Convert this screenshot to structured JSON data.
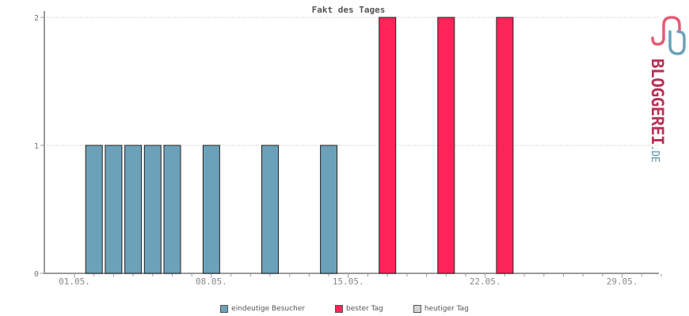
{
  "chart_data": {
    "type": "bar",
    "title": "Fakt des Tages",
    "xlabel": "",
    "ylabel": "",
    "ylim": [
      0,
      2
    ],
    "yticks": [
      "0",
      "1",
      "2"
    ],
    "x_tick_labels": [
      "01.05.",
      "08.05.",
      "15.05.",
      "22.05.",
      "29.05."
    ],
    "grid": true,
    "legend_position": "bottom",
    "categories": [
      "01.05.",
      "02.05.",
      "03.05.",
      "04.05.",
      "05.05.",
      "06.05.",
      "07.05.",
      "08.05.",
      "09.05.",
      "10.05.",
      "11.05.",
      "12.05.",
      "13.05.",
      "14.05.",
      "15.05.",
      "16.05.",
      "17.05.",
      "18.05.",
      "19.05.",
      "20.05.",
      "21.05.",
      "22.05.",
      "23.05.",
      "24.05.",
      "25.05.",
      "26.05.",
      "27.05.",
      "28.05.",
      "29.05.",
      "30.05.",
      "31.05."
    ],
    "series": [
      {
        "name": "eindeutige Besucher",
        "color": "#6ca2b9",
        "values": [
          0,
          1,
          1,
          1,
          1,
          1,
          0,
          1,
          0,
          0,
          1,
          0,
          0,
          1,
          0,
          0,
          0,
          0,
          0,
          0,
          0,
          0,
          0,
          0,
          0,
          0,
          0,
          0,
          0,
          0,
          0
        ]
      },
      {
        "name": "bester Tag",
        "color": "#ff2459",
        "values": [
          0,
          0,
          0,
          0,
          0,
          0,
          0,
          0,
          0,
          0,
          0,
          0,
          0,
          0,
          0,
          0,
          2,
          0,
          0,
          2,
          0,
          0,
          2,
          0,
          0,
          0,
          0,
          0,
          0,
          0,
          0
        ]
      },
      {
        "name": "heutiger Tag",
        "color": "#d3d3d3",
        "values": [
          0,
          0,
          0,
          0,
          0,
          0,
          0,
          0,
          0,
          0,
          0,
          0,
          0,
          0,
          0,
          0,
          0,
          0,
          0,
          0,
          0,
          0,
          0,
          0,
          0,
          0,
          0,
          0,
          0,
          0,
          0
        ]
      }
    ]
  },
  "logo": {
    "text": "BLOGGEREI",
    "suffix": ".DE",
    "color_main": "#b8325a",
    "color_suffix": "#5b8ca3"
  }
}
